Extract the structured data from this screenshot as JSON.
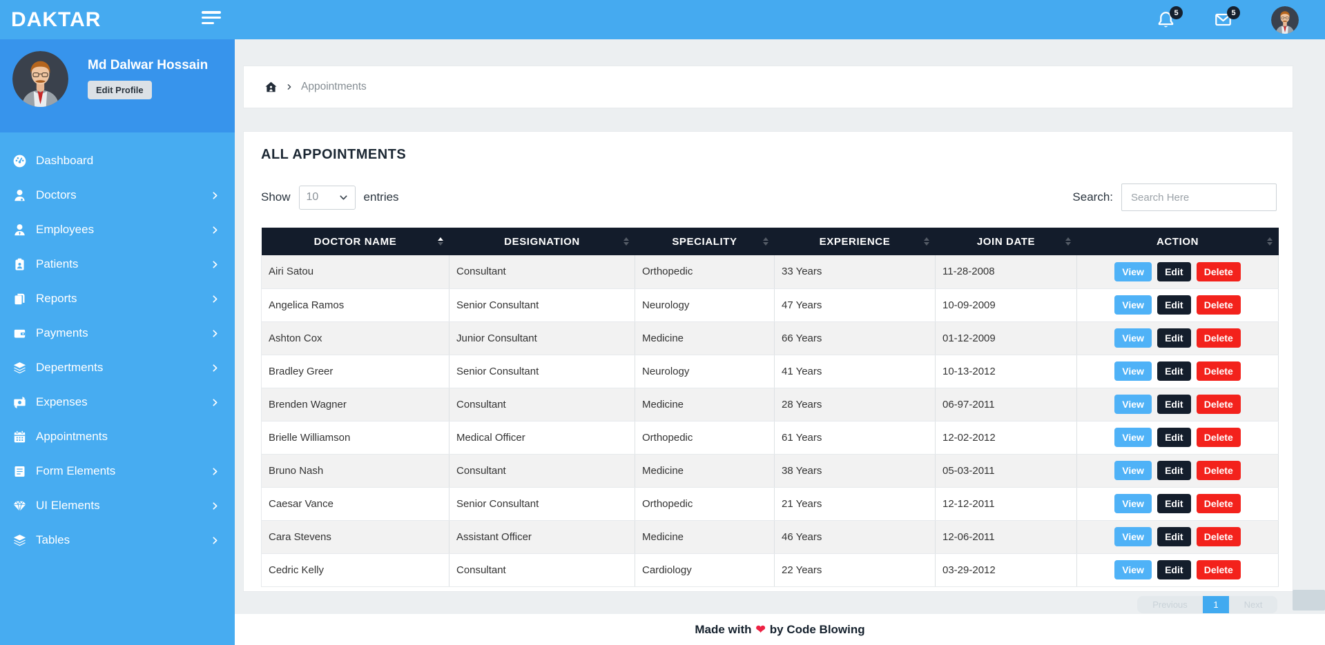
{
  "header": {
    "brand": "DAKTAR",
    "notifications": {
      "count": "5"
    },
    "messages": {
      "count": "5"
    }
  },
  "sidebar": {
    "profile": {
      "name": "Md Dalwar Hossain",
      "edit_button": "Edit Profile"
    },
    "items": [
      {
        "label": "Dashboard",
        "icon": "dashboard-icon",
        "has_submenu": false
      },
      {
        "label": "Doctors",
        "icon": "doctor-icon",
        "has_submenu": true
      },
      {
        "label": "Employees",
        "icon": "employees-icon",
        "has_submenu": true
      },
      {
        "label": "Patients",
        "icon": "patients-icon",
        "has_submenu": true
      },
      {
        "label": "Reports",
        "icon": "reports-icon",
        "has_submenu": true
      },
      {
        "label": "Payments",
        "icon": "payments-icon",
        "has_submenu": true
      },
      {
        "label": "Depertments",
        "icon": "departments-icon",
        "has_submenu": true
      },
      {
        "label": "Expenses",
        "icon": "expenses-icon",
        "has_submenu": true
      },
      {
        "label": "Appointments",
        "icon": "appointments-icon",
        "has_submenu": false
      },
      {
        "label": "Form Elements",
        "icon": "form-icon",
        "has_submenu": true
      },
      {
        "label": "UI Elements",
        "icon": "ui-icon",
        "has_submenu": true
      },
      {
        "label": "Tables",
        "icon": "tables-icon",
        "has_submenu": true
      }
    ]
  },
  "breadcrumb": {
    "page": "Appointments"
  },
  "main": {
    "title": "ALL APPOINTMENTS",
    "show_label": "Show",
    "page_size": "10",
    "entries_label": "entries",
    "search_label": "Search:",
    "search_placeholder": "Search Here",
    "table": {
      "columns": [
        "DOCTOR NAME",
        "DESIGNATION",
        "SPECIALITY",
        "EXPERIENCE",
        "JOIN DATE",
        "ACTION"
      ],
      "sort": {
        "column": "DOCTOR NAME",
        "direction": "asc"
      },
      "actions": {
        "view": "View",
        "edit": "Edit",
        "delete": "Delete"
      },
      "rows": [
        {
          "name": "Airi Satou",
          "designation": "Consultant",
          "speciality": "Orthopedic",
          "experience": "33 Years",
          "join_date": "11-28-2008"
        },
        {
          "name": "Angelica Ramos",
          "designation": "Senior Consultant",
          "speciality": "Neurology",
          "experience": "47 Years",
          "join_date": "10-09-2009"
        },
        {
          "name": "Ashton Cox",
          "designation": "Junior Consultant",
          "speciality": "Medicine",
          "experience": "66 Years",
          "join_date": "01-12-2009"
        },
        {
          "name": "Bradley Greer",
          "designation": "Senior Consultant",
          "speciality": "Neurology",
          "experience": "41 Years",
          "join_date": "10-13-2012"
        },
        {
          "name": "Brenden Wagner",
          "designation": "Consultant",
          "speciality": "Medicine",
          "experience": "28 Years",
          "join_date": "06-97-2011"
        },
        {
          "name": "Brielle Williamson",
          "designation": "Medical Officer",
          "speciality": "Orthopedic",
          "experience": "61 Years",
          "join_date": "12-02-2012"
        },
        {
          "name": "Bruno Nash",
          "designation": "Consultant",
          "speciality": "Medicine",
          "experience": "38 Years",
          "join_date": "05-03-2011"
        },
        {
          "name": "Caesar Vance",
          "designation": "Senior Consultant",
          "speciality": "Orthopedic",
          "experience": "21 Years",
          "join_date": "12-12-2011"
        },
        {
          "name": "Cara Stevens",
          "designation": "Assistant Officer",
          "speciality": "Medicine",
          "experience": "46 Years",
          "join_date": "12-06-2011"
        },
        {
          "name": "Cedric Kelly",
          "designation": "Consultant",
          "speciality": "Cardiology",
          "experience": "22 Years",
          "join_date": "03-29-2012"
        }
      ]
    },
    "pagination": {
      "previous_label": "Previous",
      "page": "1",
      "next_label": "Next"
    }
  },
  "footer": {
    "prefix": "Made with",
    "heart": "❤",
    "suffix": "by Code Blowing"
  },
  "colors": {
    "topbar_blue": "#45aaf0",
    "sidebar_profile_blue": "#3794ec",
    "sidebar_menu_blue": "#47acf1",
    "table_header_navy": "#131c2b",
    "view_button_blue": "#4fb2f7",
    "edit_button_dark": "#141e2c",
    "delete_button_red": "#f3221c",
    "pagination_active_blue": "#41aaf0",
    "heart_red": "#ed2244",
    "page_background": "#eceff1"
  }
}
